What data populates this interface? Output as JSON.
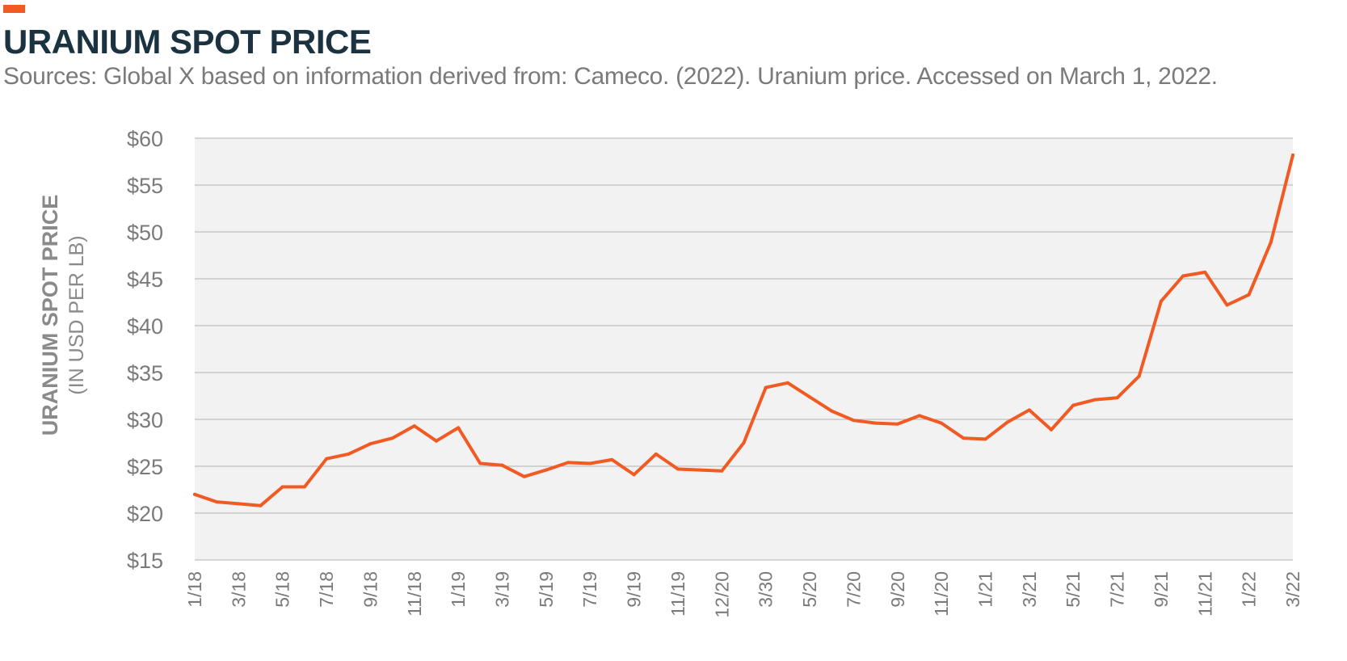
{
  "header": {
    "title": "URANIUM SPOT PRICE",
    "subtitle": "Sources: Global X based on information derived from: Cameco. (2022). Uranium price. Accessed on March 1, 2022."
  },
  "colors": {
    "accent": "#f15a22",
    "title": "#1b3340",
    "plot_background": "#f2f2f2",
    "grid": "#b3b3b3"
  },
  "chart_data": {
    "type": "line",
    "title": "URANIUM SPOT PRICE",
    "ylabel": "URANIUM SPOT PRICE",
    "ylabel_sub": "(IN USD PER LB)",
    "xlabel": "",
    "ylim": [
      15,
      60
    ],
    "y_ticks": [
      15,
      20,
      25,
      30,
      35,
      40,
      45,
      50,
      55,
      60
    ],
    "y_tick_labels": [
      "$15",
      "$20",
      "$25",
      "$30",
      "$35",
      "$40",
      "$45",
      "$50",
      "$55",
      "$60"
    ],
    "grid": true,
    "x_tick_labels": [
      "1/18",
      "3/18",
      "5/18",
      "7/18",
      "9/18",
      "11/18",
      "1/19",
      "3/19",
      "5/19",
      "7/19",
      "9/19",
      "11/19",
      "12/20",
      "3/30",
      "5/20",
      "7/20",
      "9/20",
      "11/20",
      "1/21",
      "3/21",
      "5/21",
      "7/21",
      "9/21",
      "11/21",
      "1/22",
      "3/22"
    ],
    "series": [
      {
        "color": "#f15a22",
        "values": [
          22.0,
          21.2,
          21.0,
          20.8,
          22.8,
          22.8,
          25.8,
          26.3,
          27.4,
          28.0,
          29.3,
          27.7,
          29.1,
          25.3,
          25.1,
          23.9,
          24.6,
          25.4,
          25.3,
          25.7,
          24.1,
          26.3,
          24.7,
          24.6,
          24.5,
          27.5,
          33.4,
          33.9,
          32.4,
          30.9,
          29.9,
          29.6,
          29.5,
          30.4,
          29.6,
          28.0,
          27.9,
          29.7,
          31.0,
          28.9,
          31.5,
          32.1,
          32.3,
          34.6,
          42.6,
          45.3,
          45.7,
          42.2,
          43.3,
          48.9,
          58.2
        ]
      }
    ]
  }
}
